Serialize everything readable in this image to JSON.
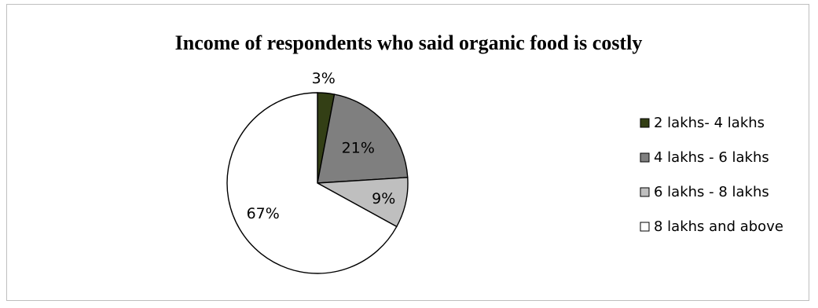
{
  "chart_data": {
    "type": "pie",
    "title": "Income of respondents who said organic food is costly",
    "categories": [
      "2 lakhs- 4 lakhs",
      "4 lakhs - 6 lakhs",
      "6 lakhs - 8 lakhs",
      "8 lakhs and above"
    ],
    "values": [
      3,
      21,
      9,
      67
    ],
    "data_labels": [
      "3%",
      "21%",
      "9%",
      "67%"
    ],
    "colors": [
      "#333f15",
      "#7f7f7f",
      "#bfbfbf",
      "#ffffff"
    ],
    "legend_position": "right"
  }
}
